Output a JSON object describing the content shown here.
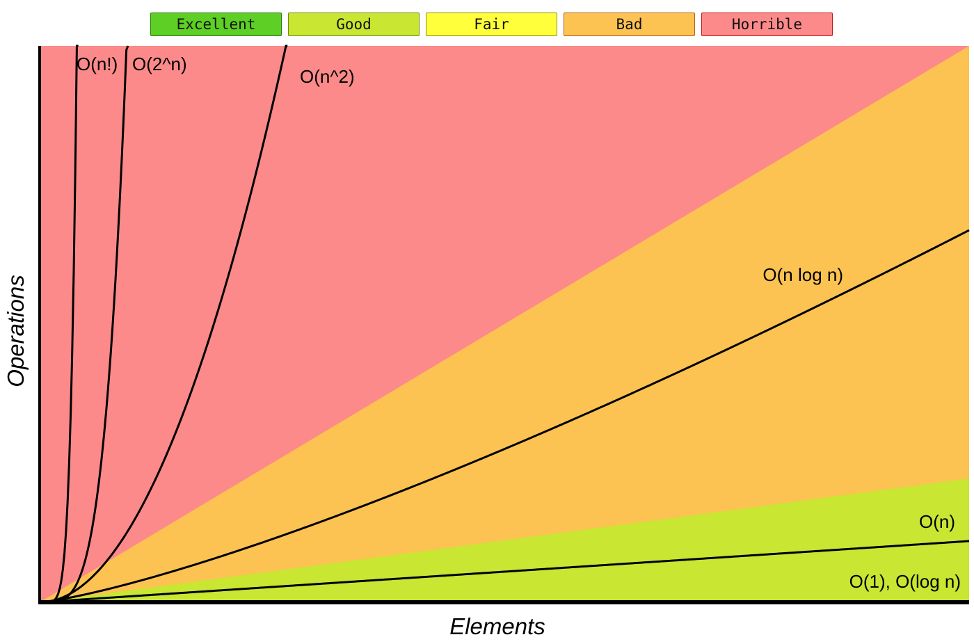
{
  "legend": [
    {
      "label": "Excellent",
      "color": "#5dcf25",
      "border": "#2b7a12"
    },
    {
      "label": "Good",
      "color": "#c8e632",
      "border": "#6f8a12"
    },
    {
      "label": "Fair",
      "color": "#ffff3b",
      "border": "#8f8f10"
    },
    {
      "label": "Bad",
      "color": "#fcc352",
      "border": "#b0601a"
    },
    {
      "label": "Horrible",
      "color": "#fc8a8a",
      "border": "#b81b1b"
    }
  ],
  "chart_data": {
    "type": "line",
    "title": "",
    "xlabel": "Elements",
    "ylabel": "Operations",
    "grid": false,
    "legend_position": "top",
    "regions": [
      {
        "name": "Horrible",
        "color": "#fc8a8a"
      },
      {
        "name": "Bad",
        "color": "#fcc352"
      },
      {
        "name": "Good",
        "color": "#c8e632"
      }
    ],
    "series": [
      {
        "name": "O(1), O(log n)",
        "complexity": "log"
      },
      {
        "name": "O(n)",
        "complexity": "n"
      },
      {
        "name": "O(n log n)",
        "complexity": "nlogn"
      },
      {
        "name": "O(n^2)",
        "complexity": "n2"
      },
      {
        "name": "O(2^n)",
        "complexity": "2n"
      },
      {
        "name": "O(n!)",
        "complexity": "fact"
      }
    ]
  }
}
